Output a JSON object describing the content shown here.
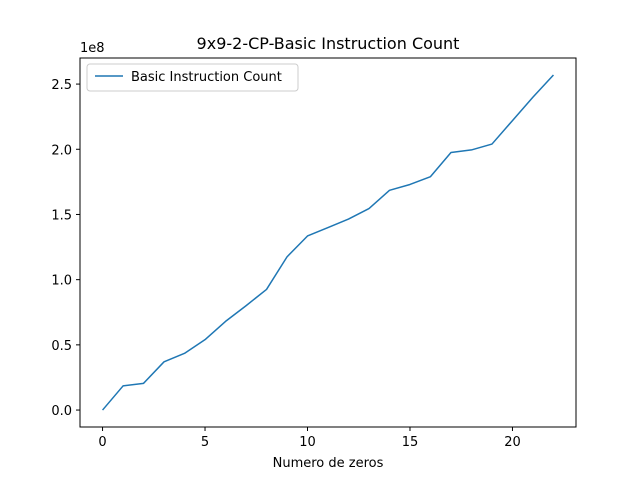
{
  "chart_data": {
    "type": "line",
    "title": "9x9-2-CP-Basic Instruction Count",
    "xlabel": "Numero de zeros",
    "ylabel": "",
    "y_offset_label": "1e8",
    "xlim": [
      -1.1,
      23.1
    ],
    "ylim": [
      -0.13,
      2.7
    ],
    "x_ticks": [
      0,
      5,
      10,
      15,
      20
    ],
    "y_ticks": [
      0.0,
      0.5,
      1.0,
      1.5,
      2.0,
      2.5
    ],
    "y_tick_labels": [
      "0.0",
      "0.5",
      "1.0",
      "1.5",
      "2.0",
      "2.5"
    ],
    "x_tick_labels": [
      "0",
      "5",
      "10",
      "15",
      "20"
    ],
    "grid": false,
    "legend_position": "top-left",
    "series": [
      {
        "name": "Basic Instruction Count",
        "color": "#1f77b4",
        "x": [
          0,
          1,
          2,
          3,
          4,
          5,
          6,
          7,
          8,
          9,
          10,
          11,
          12,
          13,
          14,
          15,
          16,
          17,
          18,
          19,
          20,
          21,
          22
        ],
        "y": [
          0.0,
          0.185,
          0.205,
          0.37,
          0.435,
          0.54,
          0.68,
          0.8,
          0.925,
          1.175,
          1.335,
          1.4,
          1.465,
          1.545,
          1.685,
          1.73,
          1.79,
          1.975,
          1.995,
          2.04,
          2.22,
          2.4,
          2.57
        ]
      }
    ]
  }
}
